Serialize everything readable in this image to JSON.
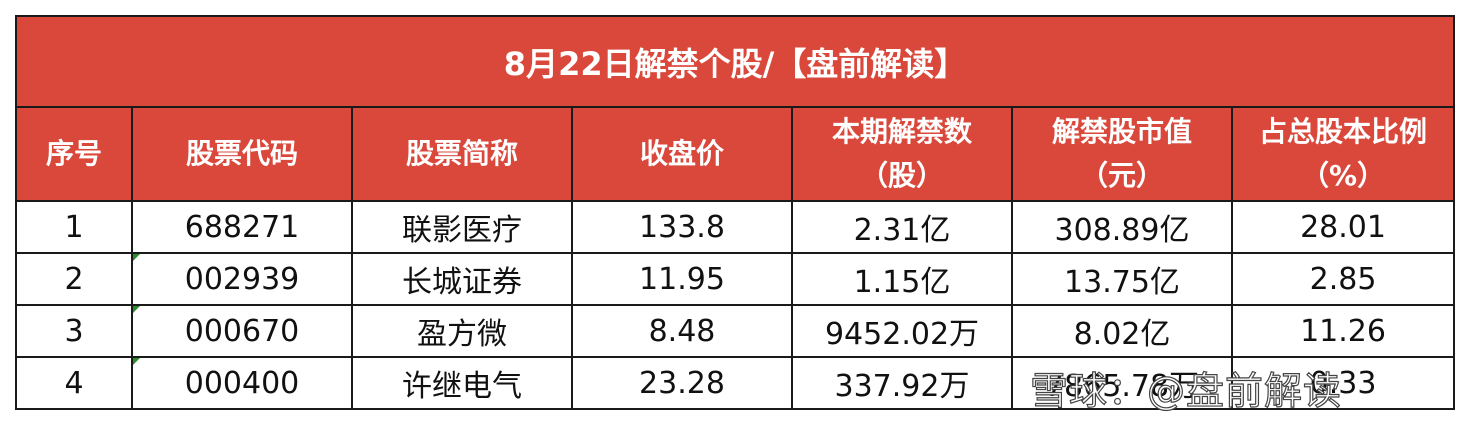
{
  "title": "8月22日解禁个股/【盘前解读】",
  "headers": [
    {
      "line1": "序号",
      "line2": ""
    },
    {
      "line1": "股票代码",
      "line2": ""
    },
    {
      "line1": "股票简称",
      "line2": ""
    },
    {
      "line1": "收盘价",
      "line2": ""
    },
    {
      "line1": "本期解禁数",
      "line2": "（股）"
    },
    {
      "line1": "解禁股市值",
      "line2": "（元）"
    },
    {
      "line1": "占总股本比例",
      "line2": "（%）"
    }
  ],
  "rows": [
    [
      "1",
      "688271",
      "联影医疗",
      "133.8",
      "2.31亿",
      "308.89亿",
      "28.01"
    ],
    [
      "2",
      "002939",
      "长城证券",
      "11.95",
      "1.15亿",
      "13.75亿",
      "2.85"
    ],
    [
      "3",
      "000670",
      "盈方微",
      "8.48",
      "9452.02万",
      "8.02亿",
      "11.26"
    ],
    [
      "4",
      "000400",
      "许继电气",
      "23.28",
      "337.92万",
      "7865.78万",
      "0.33"
    ]
  ],
  "watermark": "雪球：@盘前解读"
}
